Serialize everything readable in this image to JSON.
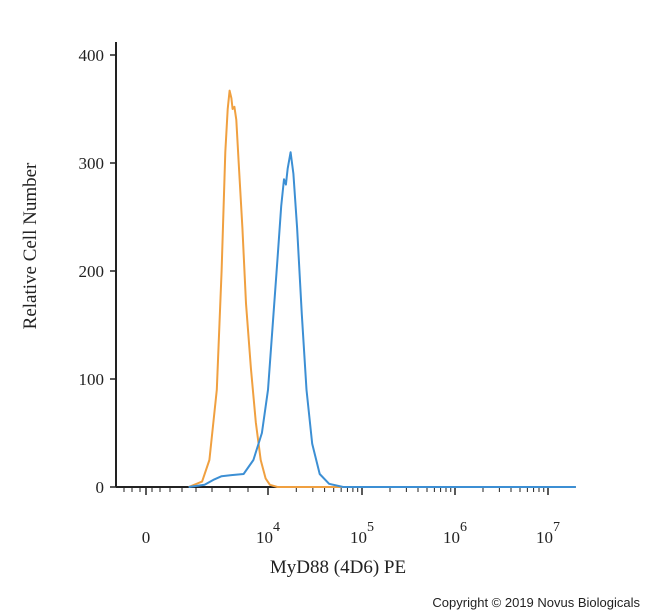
{
  "chart_data": {
    "type": "line",
    "title": "",
    "xlabel": "MyD88 (4D6) PE",
    "ylabel": "Relative Cell Number",
    "x_scale": "biexponential",
    "ylim": [
      0,
      400
    ],
    "y_ticks": [
      {
        "value": 0,
        "label": "0"
      },
      {
        "value": 100,
        "label": "100"
      },
      {
        "value": 200,
        "label": "200"
      },
      {
        "value": 300,
        "label": "300"
      },
      {
        "value": 400,
        "label": "400"
      }
    ],
    "x_ticks": [
      {
        "value": "0",
        "base": "0",
        "exp": ""
      },
      {
        "value": "10^4",
        "base": "10",
        "exp": "4"
      },
      {
        "value": "10^5",
        "base": "10",
        "exp": "5"
      },
      {
        "value": "10^6",
        "base": "10",
        "exp": "6"
      },
      {
        "value": "10^7",
        "base": "10",
        "exp": "7"
      }
    ],
    "series": [
      {
        "color": "#f0a040",
        "points": [
          [
            0.35,
            0
          ],
          [
            0.46,
            5
          ],
          [
            0.52,
            25
          ],
          [
            0.58,
            90
          ],
          [
            0.62,
            200
          ],
          [
            0.65,
            310
          ],
          [
            0.67,
            350
          ],
          [
            0.685,
            367
          ],
          [
            0.7,
            360
          ],
          [
            0.71,
            350
          ],
          [
            0.725,
            352
          ],
          [
            0.74,
            340
          ],
          [
            0.76,
            300
          ],
          [
            0.79,
            240
          ],
          [
            0.82,
            170
          ],
          [
            0.86,
            110
          ],
          [
            0.9,
            60
          ],
          [
            0.94,
            25
          ],
          [
            0.98,
            8
          ],
          [
            1.02,
            2
          ],
          [
            1.1,
            0
          ],
          [
            4.3,
            0
          ]
        ]
      },
      {
        "color": "#3c8fd4",
        "points": [
          [
            0.35,
            0
          ],
          [
            0.48,
            2
          ],
          [
            0.56,
            7
          ],
          [
            0.62,
            10
          ],
          [
            0.7,
            11
          ],
          [
            0.8,
            12
          ],
          [
            0.88,
            25
          ],
          [
            0.95,
            50
          ],
          [
            1.0,
            90
          ],
          [
            1.05,
            150
          ],
          [
            1.1,
            210
          ],
          [
            1.14,
            260
          ],
          [
            1.17,
            285
          ],
          [
            1.19,
            280
          ],
          [
            1.21,
            295
          ],
          [
            1.24,
            310
          ],
          [
            1.27,
            290
          ],
          [
            1.31,
            240
          ],
          [
            1.36,
            160
          ],
          [
            1.41,
            90
          ],
          [
            1.47,
            40
          ],
          [
            1.55,
            12
          ],
          [
            1.65,
            3
          ],
          [
            1.8,
            0
          ],
          [
            4.3,
            0
          ]
        ]
      }
    ]
  },
  "footer": {
    "copyright": "Copyright © 2019 Novus Biologicals"
  }
}
